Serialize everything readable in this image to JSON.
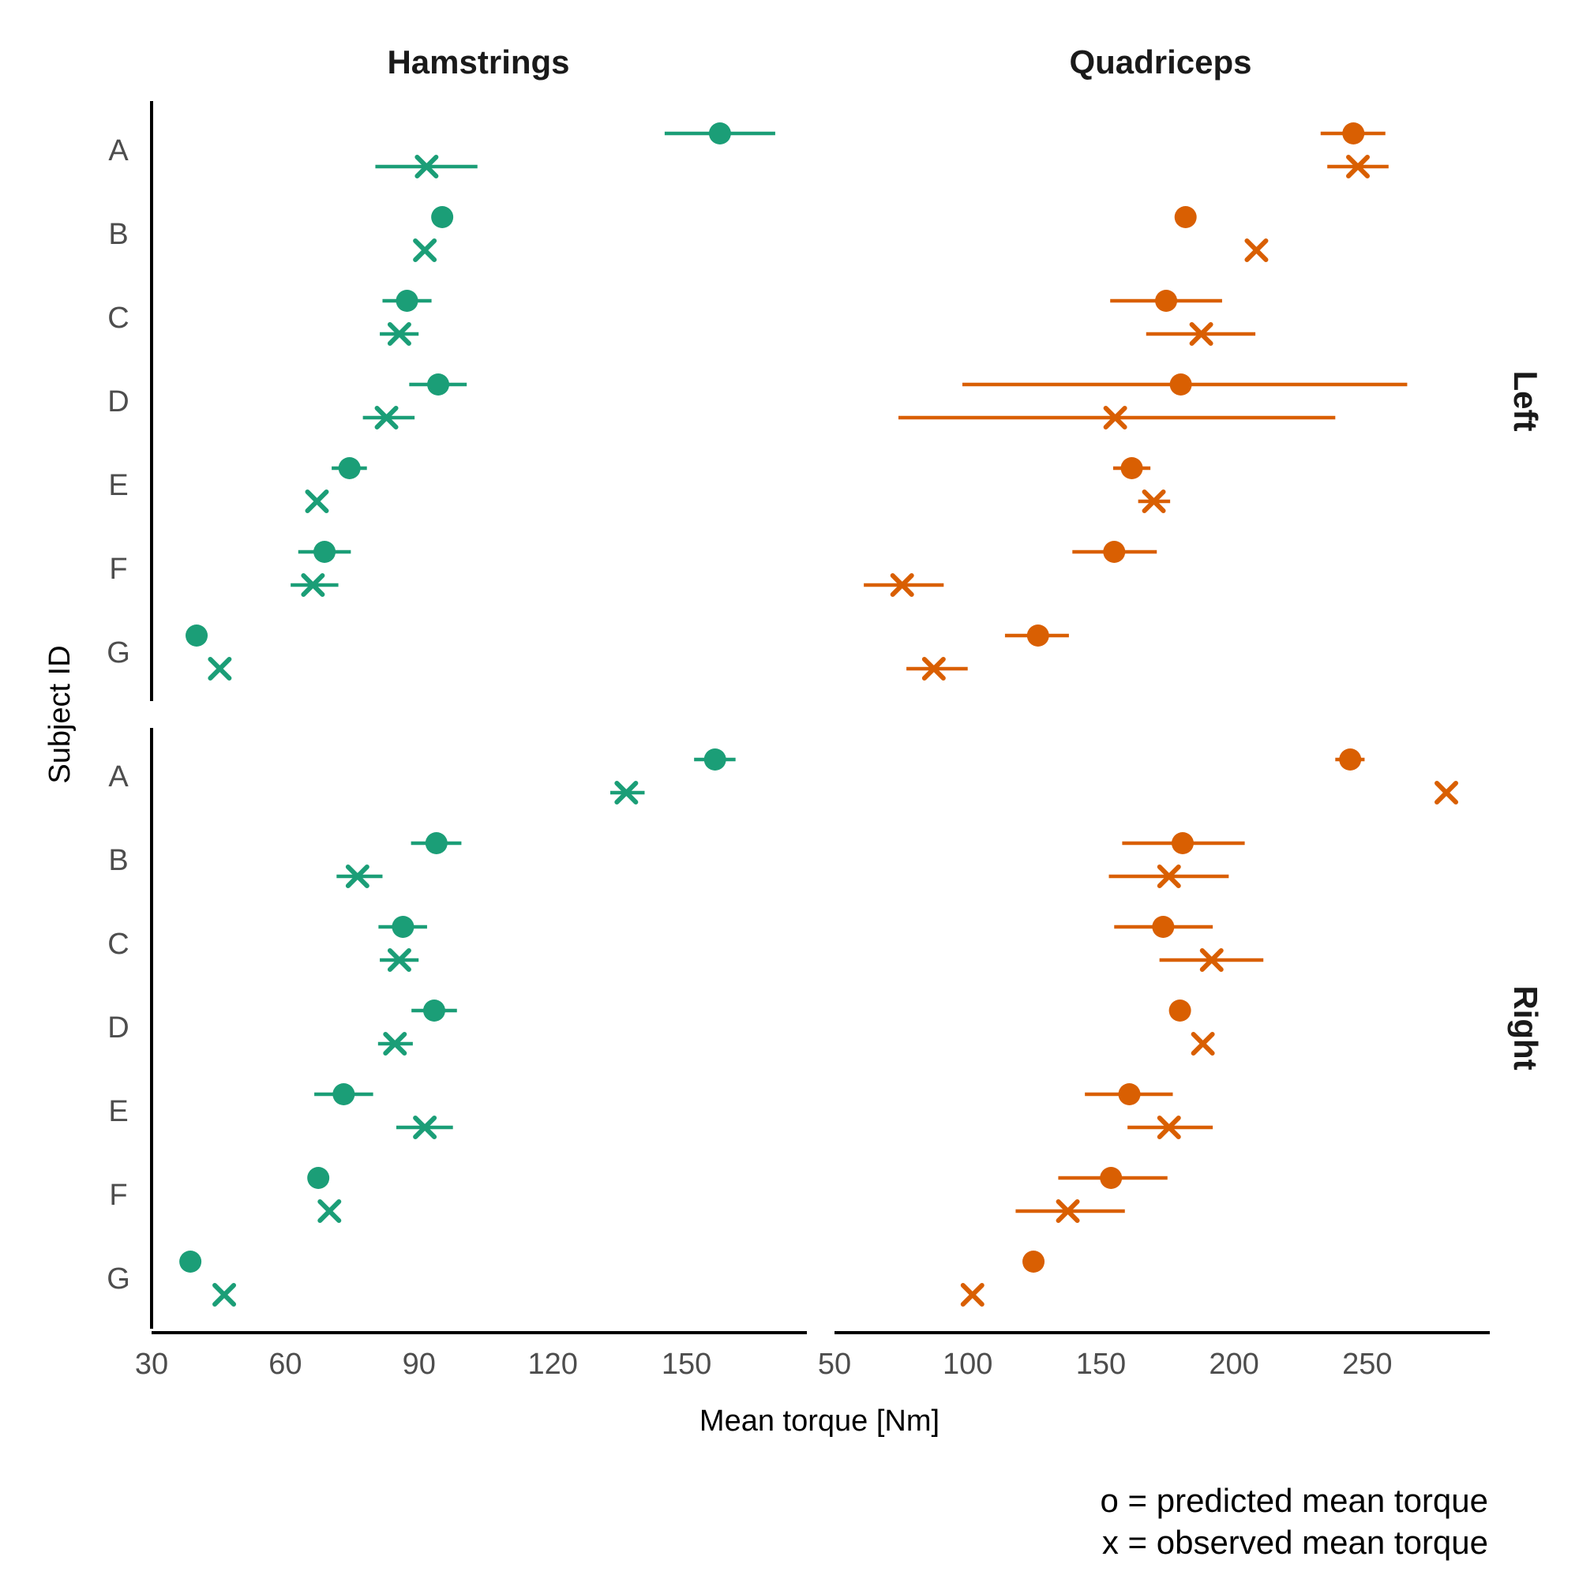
{
  "chart_data": {
    "type": "scatter",
    "title": "",
    "xlabel": "Mean torque [Nm]",
    "ylabel": "Subject ID",
    "subjects": [
      "A",
      "B",
      "C",
      "D",
      "E",
      "F",
      "G"
    ],
    "legend_note": [
      "o = predicted mean torque",
      "x = observed mean torque"
    ],
    "columns": [
      {
        "name": "Hamstrings",
        "color": "#1b9e77",
        "xlim": [
          30,
          177
        ],
        "ticks": [
          30,
          60,
          90,
          120,
          150
        ]
      },
      {
        "name": "Quadriceps",
        "color": "#d95f02",
        "xlim": [
          50,
          296
        ],
        "ticks": [
          50,
          100,
          150,
          200,
          250
        ]
      }
    ],
    "rows": [
      "Left",
      "Right"
    ],
    "panels": [
      {
        "row": "Left",
        "column": "Hamstrings",
        "predicted": [
          {
            "subject": "A",
            "value": 157.5,
            "low": 145.1,
            "high": 169.9
          },
          {
            "subject": "B",
            "value": 95.2,
            "low": 95.2,
            "high": 95.2
          },
          {
            "subject": "C",
            "value": 87.3,
            "low": 81.8,
            "high": 92.8
          },
          {
            "subject": "D",
            "value": 94.3,
            "low": 87.8,
            "high": 100.7
          },
          {
            "subject": "E",
            "value": 74.4,
            "low": 70.4,
            "high": 78.3
          },
          {
            "subject": "F",
            "value": 68.8,
            "low": 62.9,
            "high": 74.7
          },
          {
            "subject": "G",
            "value": 40.1,
            "low": 40.1,
            "high": 40.1
          }
        ],
        "observed": [
          {
            "subject": "A",
            "value": 91.7,
            "low": 80.2,
            "high": 103.1
          },
          {
            "subject": "B",
            "value": 91.3,
            "low": 91.3,
            "high": 91.3
          },
          {
            "subject": "C",
            "value": 85.6,
            "low": 81.2,
            "high": 89.9
          },
          {
            "subject": "D",
            "value": 82.7,
            "low": 77.4,
            "high": 89.0
          },
          {
            "subject": "E",
            "value": 67.1,
            "low": 67.1,
            "high": 67.1
          },
          {
            "subject": "F",
            "value": 66.2,
            "low": 61.2,
            "high": 71.9
          },
          {
            "subject": "G",
            "value": 45.3,
            "low": 45.3,
            "high": 45.3
          }
        ]
      },
      {
        "row": "Left",
        "column": "Quadriceps",
        "predicted": [
          {
            "subject": "A",
            "value": 244.8,
            "low": 232.5,
            "high": 256.8
          },
          {
            "subject": "B",
            "value": 181.8,
            "low": 181.8,
            "high": 181.8
          },
          {
            "subject": "C",
            "value": 174.5,
            "low": 153.5,
            "high": 195.5
          },
          {
            "subject": "D",
            "value": 180.0,
            "low": 98.0,
            "high": 265.0
          },
          {
            "subject": "E",
            "value": 161.6,
            "low": 154.6,
            "high": 168.6
          },
          {
            "subject": "F",
            "value": 155.0,
            "low": 139.3,
            "high": 171.0
          },
          {
            "subject": "G",
            "value": 126.4,
            "low": 114.0,
            "high": 138.0
          }
        ],
        "observed": [
          {
            "subject": "A",
            "value": 246.5,
            "low": 235.0,
            "high": 258.0
          },
          {
            "subject": "B",
            "value": 208.4,
            "low": 208.4,
            "high": 208.4
          },
          {
            "subject": "C",
            "value": 187.7,
            "low": 167.0,
            "high": 208.0
          },
          {
            "subject": "D",
            "value": 155.4,
            "low": 74.0,
            "high": 238.0
          },
          {
            "subject": "E",
            "value": 169.9,
            "low": 164.0,
            "high": 176.0
          },
          {
            "subject": "F",
            "value": 75.4,
            "low": 61.0,
            "high": 91.0
          },
          {
            "subject": "G",
            "value": 87.3,
            "low": 77.0,
            "high": 100.0
          }
        ]
      },
      {
        "row": "Right",
        "column": "Hamstrings",
        "predicted": [
          {
            "subject": "A",
            "value": 156.4,
            "low": 151.7,
            "high": 161.0
          },
          {
            "subject": "B",
            "value": 93.9,
            "low": 88.2,
            "high": 99.5
          },
          {
            "subject": "C",
            "value": 86.4,
            "low": 80.9,
            "high": 91.8
          },
          {
            "subject": "D",
            "value": 93.4,
            "low": 88.3,
            "high": 98.5
          },
          {
            "subject": "E",
            "value": 73.1,
            "low": 66.5,
            "high": 79.7
          },
          {
            "subject": "F",
            "value": 67.4,
            "low": 67.4,
            "high": 67.4
          },
          {
            "subject": "G",
            "value": 38.7,
            "low": 38.7,
            "high": 38.7
          }
        ],
        "observed": [
          {
            "subject": "A",
            "value": 136.5,
            "low": 132.9,
            "high": 140.6
          },
          {
            "subject": "B",
            "value": 76.2,
            "low": 71.5,
            "high": 81.8
          },
          {
            "subject": "C",
            "value": 85.6,
            "low": 81.2,
            "high": 89.9
          },
          {
            "subject": "D",
            "value": 84.6,
            "low": 80.8,
            "high": 88.6
          },
          {
            "subject": "E",
            "value": 91.3,
            "low": 84.9,
            "high": 97.6
          },
          {
            "subject": "F",
            "value": 69.9,
            "low": 69.9,
            "high": 69.9
          },
          {
            "subject": "G",
            "value": 46.3,
            "low": 46.3,
            "high": 46.3
          }
        ]
      },
      {
        "row": "Right",
        "column": "Quadriceps",
        "predicted": [
          {
            "subject": "A",
            "value": 243.6,
            "low": 238.0,
            "high": 249.0
          },
          {
            "subject": "B",
            "value": 180.7,
            "low": 158.0,
            "high": 204.0
          },
          {
            "subject": "C",
            "value": 173.4,
            "low": 155.0,
            "high": 192.0
          },
          {
            "subject": "D",
            "value": 179.7,
            "low": 179.7,
            "high": 179.7
          },
          {
            "subject": "E",
            "value": 160.7,
            "low": 144.0,
            "high": 177.0
          },
          {
            "subject": "F",
            "value": 153.8,
            "low": 134.0,
            "high": 175.0
          },
          {
            "subject": "G",
            "value": 124.7,
            "low": 124.7,
            "high": 124.7
          }
        ],
        "observed": [
          {
            "subject": "A",
            "value": 279.7,
            "low": 279.7,
            "high": 279.7
          },
          {
            "subject": "B",
            "value": 175.6,
            "low": 153.0,
            "high": 198.0
          },
          {
            "subject": "C",
            "value": 191.6,
            "low": 172.0,
            "high": 211.0
          },
          {
            "subject": "D",
            "value": 188.3,
            "low": 188.3,
            "high": 188.3
          },
          {
            "subject": "E",
            "value": 175.6,
            "low": 160.0,
            "high": 192.0
          },
          {
            "subject": "F",
            "value": 137.6,
            "low": 118.0,
            "high": 159.0
          },
          {
            "subject": "G",
            "value": 101.8,
            "low": 101.8,
            "high": 101.8
          }
        ]
      }
    ]
  }
}
